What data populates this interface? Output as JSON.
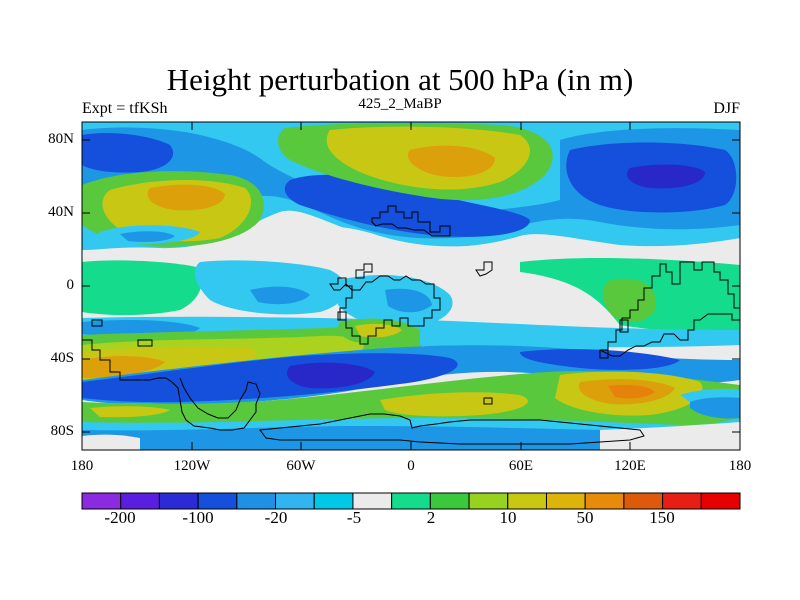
{
  "title": "Height perturbation at 500 hPa (in m)",
  "subtitle_left": "Expt = tfKSh",
  "subtitle_center": "425_2_MaBP",
  "subtitle_right": "DJF",
  "lat_labels": [
    "80N",
    "40N",
    "0",
    "40S",
    "80S"
  ],
  "lon_labels": [
    "180",
    "120W",
    "60W",
    "0",
    "60E",
    "120E",
    "180"
  ],
  "colorbar": {
    "labels": [
      "-200",
      "-100",
      "-20",
      "-5",
      "2",
      "10",
      "50",
      "150"
    ],
    "colors": [
      "#8a2be2",
      "#5a1ee0",
      "#2a2ad6",
      "#1450dc",
      "#1e90e6",
      "#32b4f0",
      "#00c8e6",
      "#ebebeb",
      "#14dc8c",
      "#3cc83c",
      "#96d21e",
      "#c8c814",
      "#dcb40a",
      "#e68c0a",
      "#dc5a0a",
      "#e61e14",
      "#e60000"
    ]
  },
  "map_colors": {
    "neutral": "#ebebeb",
    "teal": "#14dc8c",
    "green": "#5ac83c",
    "yellowgreen": "#aad21e",
    "yellow": "#c8c814",
    "orange": "#dca00a",
    "darkorange": "#e6820a",
    "cyan": "#32c8f0",
    "lightblue": "#1e96e6",
    "blue": "#1450dc",
    "darkblue": "#2828c8",
    "coast": "#000000"
  }
}
